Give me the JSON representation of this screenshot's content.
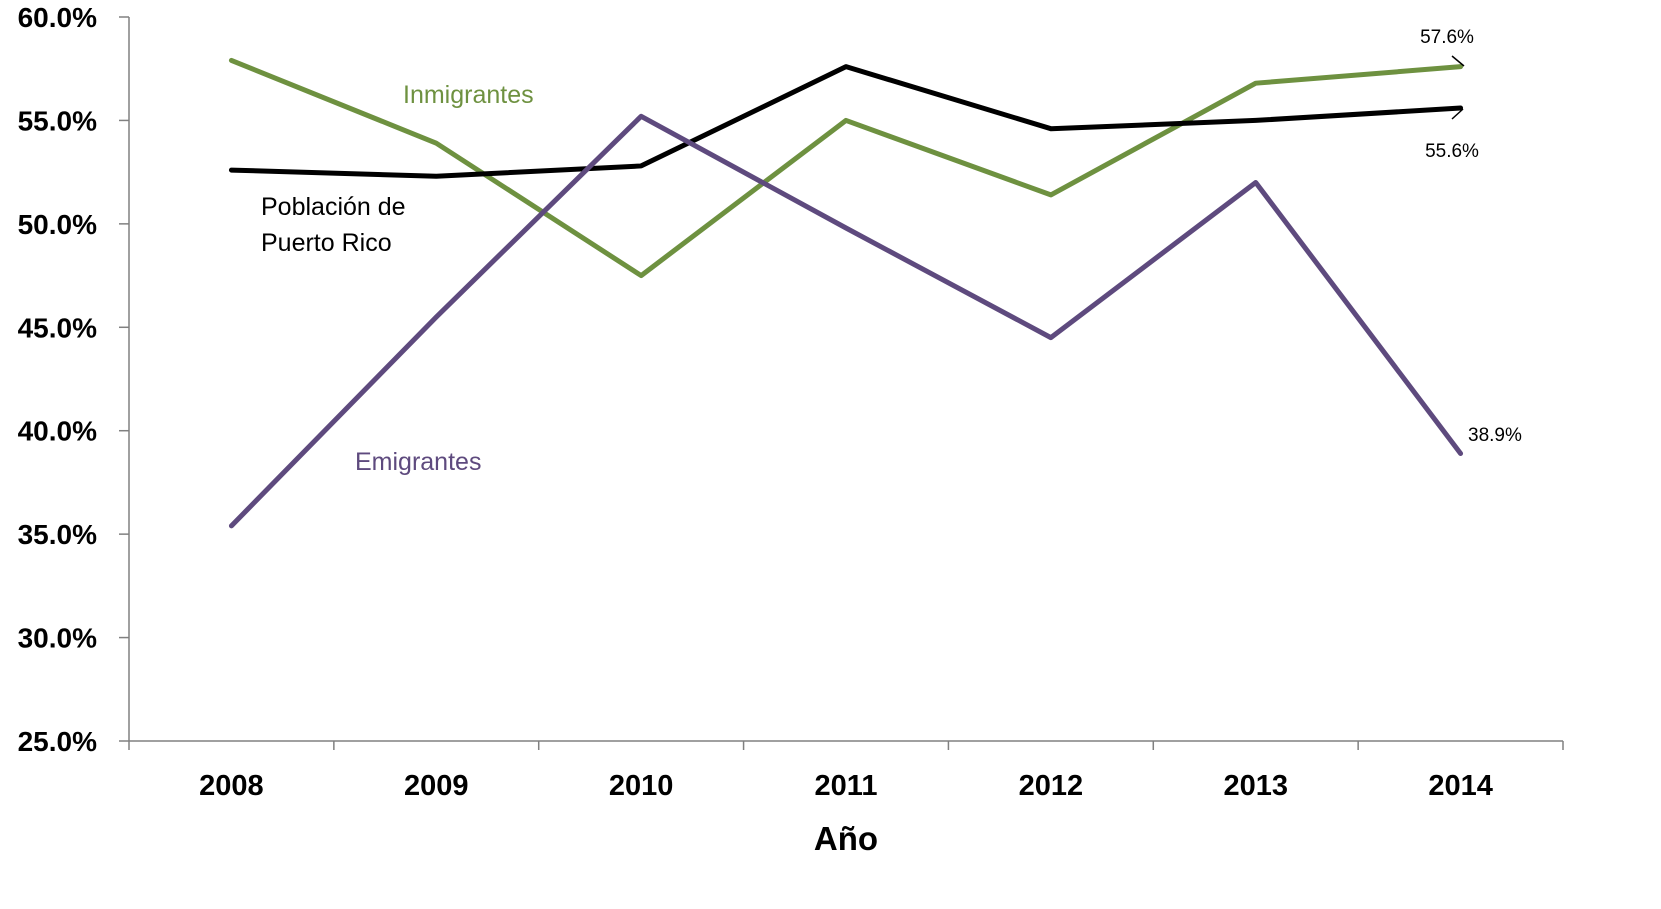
{
  "chart_data": {
    "type": "line",
    "title": "",
    "xlabel": "Año",
    "ylabel": "",
    "ylim": [
      25.0,
      60.0
    ],
    "y_ticks": [
      "25.0%",
      "30.0%",
      "35.0%",
      "40.0%",
      "45.0%",
      "50.0%",
      "55.0%",
      "60.0%"
    ],
    "categories": [
      "2008",
      "2009",
      "2010",
      "2011",
      "2012",
      "2013",
      "2014"
    ],
    "grid": false,
    "legend": "none",
    "series": [
      {
        "name": "Inmigrantes",
        "color": "#6e9140",
        "values": [
          57.9,
          53.9,
          47.5,
          55.0,
          51.4,
          56.8,
          57.6
        ]
      },
      {
        "name": "Población de Puerto Rico",
        "color": "#000000",
        "values": [
          52.6,
          52.3,
          52.8,
          57.6,
          54.6,
          55.0,
          55.6
        ]
      },
      {
        "name": "Emigrantes",
        "color": "#5e4a7e",
        "values": [
          35.4,
          45.5,
          55.2,
          49.8,
          44.5,
          52.0,
          38.9
        ]
      }
    ],
    "series_labels": {
      "inmigrantes": "Inmigrantes",
      "poblacion_line1": "Población de",
      "poblacion_line2": "Puerto Rico",
      "emigrantes": "Emigrantes"
    },
    "data_labels": {
      "inmigrantes_2014": "57.6%",
      "poblacion_2014": "55.6%",
      "emigrantes_2014": "38.9%"
    }
  }
}
